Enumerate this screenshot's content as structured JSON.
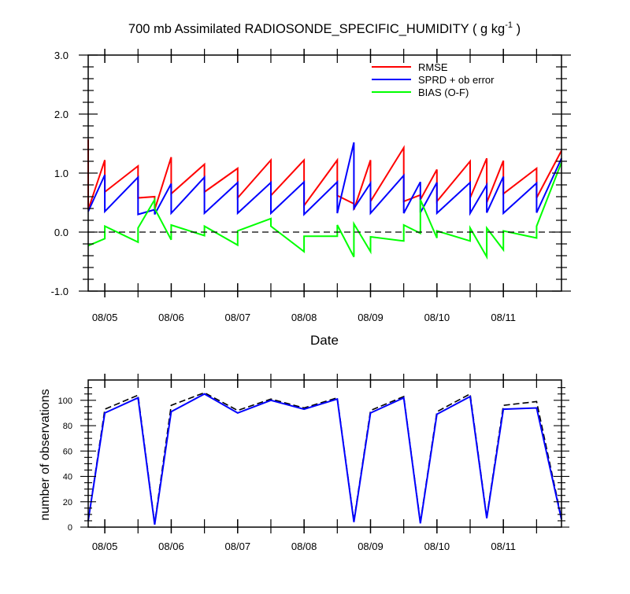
{
  "title": {
    "main": "700 mb Assimilated RADIOSONDE_SPECIFIC_HUMIDITY ( g kg",
    "sup": "-1",
    "close": " )"
  },
  "chart_data": [
    {
      "type": "line",
      "xlabel": "Date",
      "ylabel": "",
      "ylim": [
        -1.0,
        3.0
      ],
      "xlim": [
        "08/04 18:00",
        "08/11 21:00"
      ],
      "x_tick_labels": [
        "08/05",
        "08/06",
        "08/07",
        "08/08",
        "08/09",
        "08/10",
        "08/11"
      ],
      "y_tick_labels": [
        "3.0",
        "2.0",
        "1.0",
        "0.0",
        "-1.0"
      ],
      "y_ticks": [
        3.0,
        2.0,
        1.0,
        0.0,
        -1.0
      ],
      "zero_line": {
        "y": 0.0,
        "style": "dashed",
        "color": "#000000"
      },
      "legend_position": "top-right",
      "grid": false,
      "series": [
        {
          "name": "RMSE",
          "color": "#ff0000",
          "points": [
            [
              "08/04 18:00",
              1.57
            ],
            [
              "08/04 18:00",
              0.38
            ],
            [
              "08/05 00:00",
              1.22
            ],
            [
              "08/05 00:00",
              0.68
            ],
            [
              "08/05 12:00",
              1.12
            ],
            [
              "08/05 12:00",
              0.58
            ],
            [
              "08/05 18:00",
              0.6
            ],
            [
              "08/05 18:00",
              0.38
            ],
            [
              "08/06 00:00",
              1.27
            ],
            [
              "08/06 00:00",
              0.65
            ],
            [
              "08/06 12:00",
              1.15
            ],
            [
              "08/06 12:00",
              0.68
            ],
            [
              "08/07 00:00",
              1.08
            ],
            [
              "08/07 00:00",
              0.58
            ],
            [
              "08/07 12:00",
              1.22
            ],
            [
              "08/07 12:00",
              0.62
            ],
            [
              "08/08 00:00",
              1.22
            ],
            [
              "08/08 00:00",
              0.45
            ],
            [
              "08/08 12:00",
              1.22
            ],
            [
              "08/08 12:00",
              0.62
            ],
            [
              "08/08 18:00",
              0.48
            ],
            [
              "08/08 18:00",
              0.38
            ],
            [
              "08/09 00:00",
              1.22
            ],
            [
              "08/09 00:00",
              0.52
            ],
            [
              "08/09 12:00",
              1.43
            ],
            [
              "08/09 12:00",
              0.52
            ],
            [
              "08/09 18:00",
              0.63
            ],
            [
              "08/09 18:00",
              0.55
            ],
            [
              "08/10 00:00",
              1.06
            ],
            [
              "08/10 00:00",
              0.52
            ],
            [
              "08/10 12:00",
              1.2
            ],
            [
              "08/10 12:00",
              0.58
            ],
            [
              "08/10 18:00",
              1.25
            ],
            [
              "08/10 18:00",
              0.5
            ],
            [
              "08/11 00:00",
              1.21
            ],
            [
              "08/11 00:00",
              0.65
            ],
            [
              "08/11 12:00",
              1.08
            ],
            [
              "08/11 12:00",
              0.58
            ],
            [
              "08/11 21:00",
              1.38
            ]
          ]
        },
        {
          "name": "SPRD + ob error",
          "color": "#0000ff",
          "points": [
            [
              "08/04 18:00",
              0.35
            ],
            [
              "08/05 00:00",
              0.97
            ],
            [
              "08/05 00:00",
              0.35
            ],
            [
              "08/05 12:00",
              0.93
            ],
            [
              "08/05 12:00",
              0.3
            ],
            [
              "08/05 18:00",
              0.38
            ],
            [
              "08/05 18:00",
              0.3
            ],
            [
              "08/06 00:00",
              0.82
            ],
            [
              "08/06 00:00",
              0.32
            ],
            [
              "08/06 12:00",
              0.93
            ],
            [
              "08/06 12:00",
              0.32
            ],
            [
              "08/07 00:00",
              0.84
            ],
            [
              "08/07 00:00",
              0.32
            ],
            [
              "08/07 12:00",
              0.84
            ],
            [
              "08/07 12:00",
              0.32
            ],
            [
              "08/08 00:00",
              0.85
            ],
            [
              "08/08 00:00",
              0.3
            ],
            [
              "08/08 12:00",
              0.85
            ],
            [
              "08/08 12:00",
              0.32
            ],
            [
              "08/08 18:00",
              1.52
            ],
            [
              "08/08 18:00",
              0.4
            ],
            [
              "08/09 00:00",
              0.83
            ],
            [
              "08/09 00:00",
              0.32
            ],
            [
              "08/09 12:00",
              0.96
            ],
            [
              "08/09 12:00",
              0.32
            ],
            [
              "08/09 18:00",
              0.85
            ],
            [
              "08/09 18:00",
              0.33
            ],
            [
              "08/10 00:00",
              0.84
            ],
            [
              "08/10 00:00",
              0.32
            ],
            [
              "08/10 12:00",
              0.84
            ],
            [
              "08/10 12:00",
              0.32
            ],
            [
              "08/10 18:00",
              0.8
            ],
            [
              "08/10 18:00",
              0.33
            ],
            [
              "08/11 00:00",
              0.94
            ],
            [
              "08/11 00:00",
              0.32
            ],
            [
              "08/11 12:00",
              0.83
            ],
            [
              "08/11 12:00",
              0.33
            ],
            [
              "08/11 21:00",
              1.25
            ]
          ]
        },
        {
          "name": "BIAS (O-F)",
          "color": "#00ff00",
          "points": [
            [
              "08/04 18:00",
              -0.23
            ],
            [
              "08/05 00:00",
              -0.11
            ],
            [
              "08/05 00:00",
              0.1
            ],
            [
              "08/05 12:00",
              -0.17
            ],
            [
              "08/05 12:00",
              0.07
            ],
            [
              "08/05 18:00",
              0.55
            ],
            [
              "08/05 18:00",
              0.4
            ],
            [
              "08/06 00:00",
              -0.13
            ],
            [
              "08/06 00:00",
              0.12
            ],
            [
              "08/06 12:00",
              -0.06
            ],
            [
              "08/06 12:00",
              0.1
            ],
            [
              "08/07 00:00",
              -0.22
            ],
            [
              "08/07 00:00",
              0.02
            ],
            [
              "08/07 12:00",
              0.23
            ],
            [
              "08/07 12:00",
              0.1
            ],
            [
              "08/08 00:00",
              -0.33
            ],
            [
              "08/08 00:00",
              -0.07
            ],
            [
              "08/08 12:00",
              -0.07
            ],
            [
              "08/08 12:00",
              0.12
            ],
            [
              "08/08 18:00",
              -0.42
            ],
            [
              "08/08 18:00",
              0.14
            ],
            [
              "08/09 00:00",
              -0.33
            ],
            [
              "08/09 00:00",
              -0.08
            ],
            [
              "08/09 12:00",
              -0.15
            ],
            [
              "08/09 12:00",
              0.12
            ],
            [
              "08/09 18:00",
              -0.02
            ],
            [
              "08/09 18:00",
              0.55
            ],
            [
              "08/10 00:00",
              -0.1
            ],
            [
              "08/10 00:00",
              0.02
            ],
            [
              "08/10 12:00",
              -0.15
            ],
            [
              "08/10 12:00",
              0.07
            ],
            [
              "08/10 18:00",
              -0.42
            ],
            [
              "08/10 18:00",
              0.07
            ],
            [
              "08/11 00:00",
              -0.3
            ],
            [
              "08/11 00:00",
              0.02
            ],
            [
              "08/11 12:00",
              -0.1
            ],
            [
              "08/11 12:00",
              0.1
            ],
            [
              "08/11 21:00",
              1.18
            ]
          ]
        }
      ]
    },
    {
      "type": "line",
      "xlabel": "",
      "ylabel": "number of observations",
      "ylim": [
        0,
        116
      ],
      "xlim": [
        "08/04 18:00",
        "08/11 21:00"
      ],
      "x_tick_labels": [
        "08/05",
        "08/06",
        "08/07",
        "08/08",
        "08/09",
        "08/10",
        "08/11"
      ],
      "y_tick_labels": [
        "100",
        "80",
        "60",
        "40",
        "20",
        "0"
      ],
      "y_ticks": [
        100,
        80,
        60,
        40,
        20,
        0
      ],
      "grid": false,
      "series": [
        {
          "color": "#000000",
          "style": "dashed",
          "points": [
            [
              "08/04 18:00",
              5
            ],
            [
              "08/05 00:00",
              93
            ],
            [
              "08/05 12:00",
              104
            ],
            [
              "08/05 18:00",
              3
            ],
            [
              "08/06 00:00",
              96
            ],
            [
              "08/06 12:00",
              106
            ],
            [
              "08/07 00:00",
              92
            ],
            [
              "08/07 12:00",
              101
            ],
            [
              "08/08 00:00",
              94
            ],
            [
              "08/08 12:00",
              102
            ],
            [
              "08/08 18:00",
              5
            ],
            [
              "08/09 00:00",
              92
            ],
            [
              "08/09 12:00",
              103
            ],
            [
              "08/09 18:00",
              4
            ],
            [
              "08/10 00:00",
              91
            ],
            [
              "08/10 12:00",
              105
            ],
            [
              "08/10 18:00",
              8
            ],
            [
              "08/11 00:00",
              96
            ],
            [
              "08/11 12:00",
              99
            ],
            [
              "08/11 21:00",
              7
            ]
          ]
        },
        {
          "color": "#0000ff",
          "style": "solid",
          "points": [
            [
              "08/04 18:00",
              5
            ],
            [
              "08/05 00:00",
              90
            ],
            [
              "08/05 12:00",
              102
            ],
            [
              "08/05 18:00",
              2
            ],
            [
              "08/06 00:00",
              91
            ],
            [
              "08/06 12:00",
              105
            ],
            [
              "08/07 00:00",
              90
            ],
            [
              "08/07 12:00",
              100
            ],
            [
              "08/08 00:00",
              93
            ],
            [
              "08/08 12:00",
              101
            ],
            [
              "08/08 18:00",
              4
            ],
            [
              "08/09 00:00",
              90
            ],
            [
              "08/09 12:00",
              102
            ],
            [
              "08/09 18:00",
              3
            ],
            [
              "08/10 00:00",
              89
            ],
            [
              "08/10 12:00",
              103
            ],
            [
              "08/10 18:00",
              7
            ],
            [
              "08/11 00:00",
              93
            ],
            [
              "08/11 12:00",
              94
            ],
            [
              "08/11 21:00",
              6
            ]
          ]
        }
      ]
    }
  ]
}
